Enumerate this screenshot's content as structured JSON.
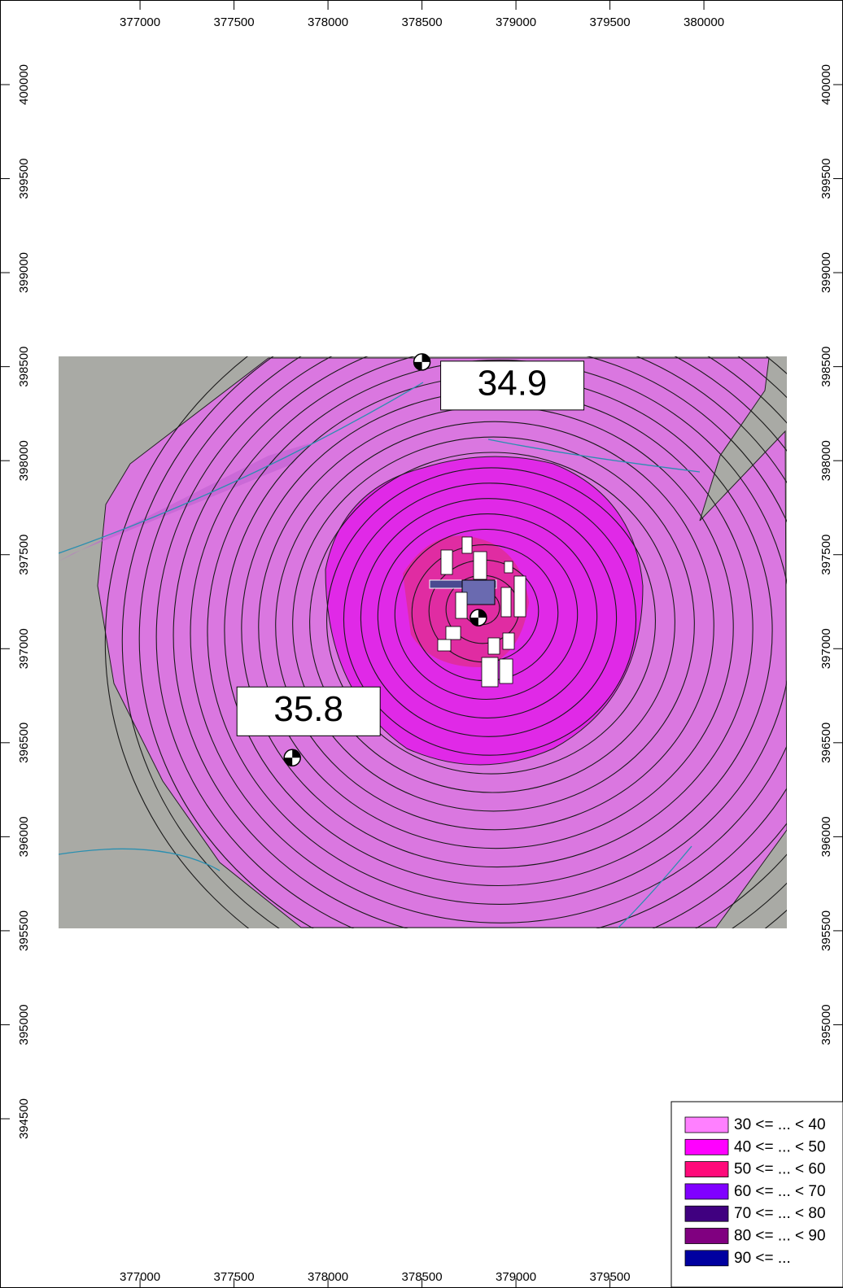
{
  "map": {
    "xlim": [
      376255,
      380740
    ],
    "ylim": [
      393600,
      400450
    ],
    "top_xticks": [
      377000,
      377500,
      378000,
      378500,
      379000,
      379500,
      380000
    ],
    "bottom_xticks": [
      377000,
      377500,
      378000,
      378500,
      379000,
      379500
    ],
    "left_yticks": [
      400000,
      399500,
      399000,
      398500,
      398000,
      397500,
      397000,
      396500,
      396000,
      395500,
      395000,
      394500
    ],
    "right_yticks": [
      400000,
      399500,
      399000,
      398500,
      398000,
      397500,
      397000,
      396500,
      396000,
      395500,
      395000
    ],
    "receptors": [
      {
        "x": 378500,
        "y": 398525,
        "value": 34.9
      },
      {
        "x": 377810,
        "y": 396420,
        "value": 35.8
      },
      {
        "x": 378800,
        "y": 397165,
        "value": null
      }
    ],
    "legend": [
      {
        "label": "30 <= ... < 40",
        "color": "#ff80ff"
      },
      {
        "label": "40 <= ... < 50",
        "color": "#ff00ff"
      },
      {
        "label": "50 <= ... < 60",
        "color": "#ff0a7a"
      },
      {
        "label": "60 <= ... < 70",
        "color": "#8000ff"
      },
      {
        "label": "70 <= ... < 80",
        "color": "#400080"
      },
      {
        "label": "80 <= ... < 90",
        "color": "#800080"
      },
      {
        "label": "90 <= ...",
        "color": "#0000a0"
      }
    ]
  }
}
